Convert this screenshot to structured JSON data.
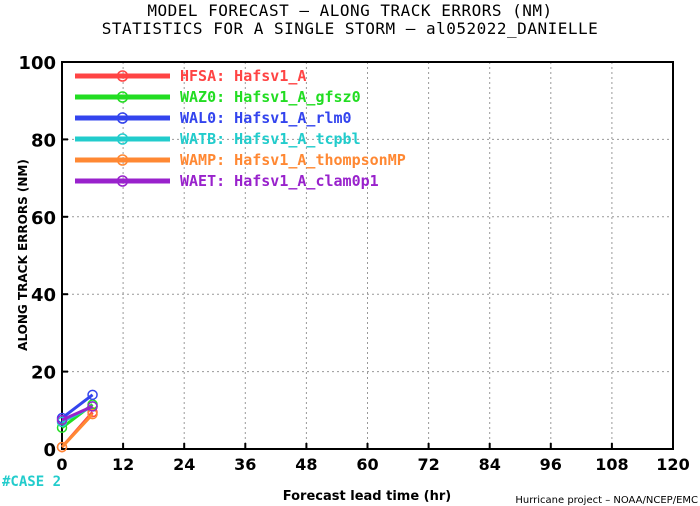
{
  "titles": {
    "line1": "MODEL FORECAST – ALONG TRACK ERRORS (NM)",
    "line2": "STATISTICS FOR A SINGLE STORM – al052022_DANIELLE"
  },
  "case_label": "#CASE  2",
  "credit": "Hurricane project – NOAA/NCEP/EMC",
  "chart_data": {
    "type": "line",
    "xlabel": "Forecast lead time (hr)",
    "ylabel": "ALONG TRACK ERRORS (NM)",
    "xlim": [
      0,
      120
    ],
    "ylim": [
      0,
      100
    ],
    "xticks": [
      0,
      12,
      24,
      36,
      48,
      60,
      72,
      84,
      96,
      108,
      120
    ],
    "yticks": [
      0,
      20,
      40,
      60,
      80,
      100
    ],
    "grid": true,
    "legend_position": "top-left",
    "x": [
      0,
      6
    ],
    "series": [
      {
        "name": "HFSA: Hafsv1_A",
        "color": "#ff4444",
        "values": [
          0.5,
          9.5
        ]
      },
      {
        "name": "WAZ0: Hafsv1_A_gfsz0",
        "color": "#22dd22",
        "values": [
          5.5,
          11.5
        ]
      },
      {
        "name": "WAL0: Hafsv1_A_rlm0",
        "color": "#3344ee",
        "values": [
          8.0,
          14.0
        ]
      },
      {
        "name": "WATB: Hafsv1_A_tcpbl",
        "color": "#22cccc",
        "values": [
          7.0,
          11.0
        ]
      },
      {
        "name": "WAMP: Hafsv1_A_thompsonMP",
        "color": "#ff8833",
        "values": [
          0.5,
          9.0
        ]
      },
      {
        "name": "WAET: Hafsv1_A_clam0p1",
        "color": "#9922cc",
        "values": [
          7.5,
          11.0
        ]
      }
    ]
  }
}
